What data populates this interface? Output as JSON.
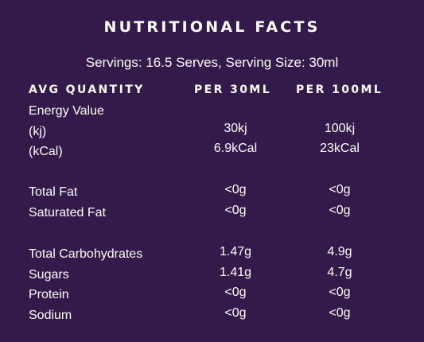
{
  "title": "NUTRITIONAL FACTS",
  "servings": "Servings: 16.5 Serves, Serving Size: 30ml",
  "headers": {
    "avg": "AVG QUANTITY",
    "per30": "PER 30ML",
    "per100": "PER 100ML"
  },
  "energy_label": "Energy Value",
  "rows": [
    {
      "label": "(kj)",
      "per30": "30kj",
      "per100": "100kj"
    },
    {
      "label": "(kCal)",
      "per30": "6.9kCal",
      "per100": "23kCal"
    },
    {
      "label": "Total Fat",
      "per30": "<0g",
      "per100": "<0g"
    },
    {
      "label": "Saturated Fat",
      "per30": "<0g",
      "per100": "<0g"
    },
    {
      "label": "Total Carbohydrates",
      "per30": "1.47g",
      "per100": "4.9g"
    },
    {
      "label": "Sugars",
      "per30": "1.41g",
      "per100": "4.7g"
    },
    {
      "label": "Protein",
      "per30": "<0g",
      "per100": "<0g"
    },
    {
      "label": "Sodium",
      "per30": "<0g",
      "per100": "<0g"
    }
  ],
  "colors": {
    "background": "#341a4a",
    "text": "#ffffff"
  }
}
